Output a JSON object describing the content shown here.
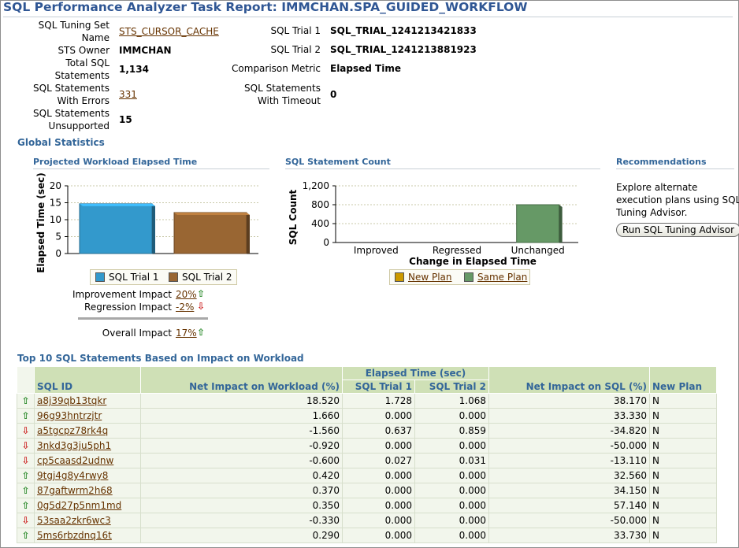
{
  "header": {
    "title": "SQL Performance Analyzer Task Report: IMMCHAN.SPA_GUIDED_WORKFLOW"
  },
  "summary": {
    "left": [
      {
        "label_line1": "SQL Tuning Set",
        "label_line2": "Name",
        "value": "STS_CURSOR_CACHE",
        "link": true
      },
      {
        "label_line1": "STS Owner",
        "label_line2": "",
        "value": "IMMCHAN",
        "link": false
      },
      {
        "label_line1": "Total SQL",
        "label_line2": "Statements",
        "value": "1,134",
        "link": false
      },
      {
        "label_line1": "SQL Statements",
        "label_line2": "With Errors",
        "value": "331",
        "link": true
      },
      {
        "label_line1": "SQL Statements",
        "label_line2": "Unsupported",
        "value": "15",
        "link": false
      }
    ],
    "right": [
      {
        "label_line1": "SQL Trial 1",
        "label_line2": "",
        "value": "SQL_TRIAL_1241213421833"
      },
      {
        "label_line1": "SQL Trial 2",
        "label_line2": "",
        "value": "SQL_TRIAL_1241213881923"
      },
      {
        "label_line1": "Comparison Metric",
        "label_line2": "",
        "value": "Elapsed Time"
      },
      {
        "label_line1": "SQL Statements",
        "label_line2": "With Timeout",
        "value": "0"
      }
    ]
  },
  "global_stats": {
    "heading": "Global Statistics",
    "workload": {
      "heading": "Projected Workload Elapsed Time",
      "improvement_label": "Improvement Impact",
      "improvement_value": "20%",
      "regression_label": "Regression Impact",
      "regression_value": "-2%",
      "overall_label": "Overall Impact",
      "overall_value": "17%"
    },
    "count": {
      "heading": "SQL Statement Count"
    },
    "recommendations": {
      "heading": "Recommendations",
      "text_line1": "Explore alternate",
      "text_line2": "execution plans using SQL",
      "text_line3": "Tuning Advisor.",
      "button": "Run SQL Tuning Advisor"
    }
  },
  "chart_data": [
    {
      "type": "bar",
      "title": "",
      "xlabel": "",
      "ylabel": "Elapsed Time (sec)",
      "ylim": [
        0,
        20
      ],
      "yticks": [
        0,
        5,
        10,
        15,
        20
      ],
      "series": [
        {
          "name": "SQL Trial 1",
          "values": [
            14.7
          ],
          "color": "#3399cc"
        },
        {
          "name": "SQL Trial 2",
          "values": [
            12.1
          ],
          "color": "#996633"
        }
      ],
      "legend": "bottom"
    },
    {
      "type": "bar",
      "title": "",
      "xlabel": "Change in Elapsed Time",
      "ylabel": "SQL Count",
      "ylim": [
        0,
        1200
      ],
      "yticks": [
        0,
        400,
        800,
        1200
      ],
      "ytick_labels": [
        "0",
        "400",
        "800",
        "1,200"
      ],
      "categories": [
        "Improved",
        "Regressed",
        "Unchanged"
      ],
      "series": [
        {
          "name": "New Plan",
          "values": [
            0,
            0,
            0
          ],
          "color": "#cc9900"
        },
        {
          "name": "Same Plan",
          "values": [
            0,
            0,
            800
          ],
          "color": "#669966"
        }
      ],
      "legend": "bottom"
    }
  ],
  "top10": {
    "heading": "Top 10 SQL Statements Based on Impact on Workload",
    "group_header": "Elapsed Time (sec)",
    "columns": [
      "SQL ID",
      "Net Impact on Workload (%)",
      "SQL Trial 1",
      "SQL Trial 2",
      "Net Impact on SQL (%)",
      "New Plan"
    ],
    "rows": [
      {
        "dir": "up",
        "id": "a8j39qb13tqkr",
        "workload": "18.520",
        "t1": "1.728",
        "t2": "1.068",
        "sql": "38.170",
        "plan": "N"
      },
      {
        "dir": "up",
        "id": "96g93hntrzjtr",
        "workload": "1.660",
        "t1": "0.000",
        "t2": "0.000",
        "sql": "33.330",
        "plan": "N"
      },
      {
        "dir": "down",
        "id": "a5tgcpz78rk4q",
        "workload": "-1.560",
        "t1": "0.637",
        "t2": "0.859",
        "sql": "-34.820",
        "plan": "N"
      },
      {
        "dir": "down",
        "id": "3nkd3g3ju5ph1",
        "workload": "-0.920",
        "t1": "0.000",
        "t2": "0.000",
        "sql": "-50.000",
        "plan": "N"
      },
      {
        "dir": "down",
        "id": "cp5caasd2udnw",
        "workload": "-0.600",
        "t1": "0.027",
        "t2": "0.031",
        "sql": "-13.110",
        "plan": "N"
      },
      {
        "dir": "up",
        "id": "9tgj4g8y4rwy8",
        "workload": "0.420",
        "t1": "0.000",
        "t2": "0.000",
        "sql": "32.560",
        "plan": "N"
      },
      {
        "dir": "up",
        "id": "87gaftwrm2h68",
        "workload": "0.370",
        "t1": "0.000",
        "t2": "0.000",
        "sql": "34.150",
        "plan": "N"
      },
      {
        "dir": "up",
        "id": "0g5d27p5nm1md",
        "workload": "0.350",
        "t1": "0.000",
        "t2": "0.000",
        "sql": "57.140",
        "plan": "N"
      },
      {
        "dir": "down",
        "id": "53saa2zkr6wc3",
        "workload": "-0.330",
        "t1": "0.000",
        "t2": "0.000",
        "sql": "-50.000",
        "plan": "N"
      },
      {
        "dir": "up",
        "id": "5ms6rbzdnq16t",
        "workload": "0.290",
        "t1": "0.000",
        "t2": "0.000",
        "sql": "33.730",
        "plan": "N"
      }
    ]
  }
}
